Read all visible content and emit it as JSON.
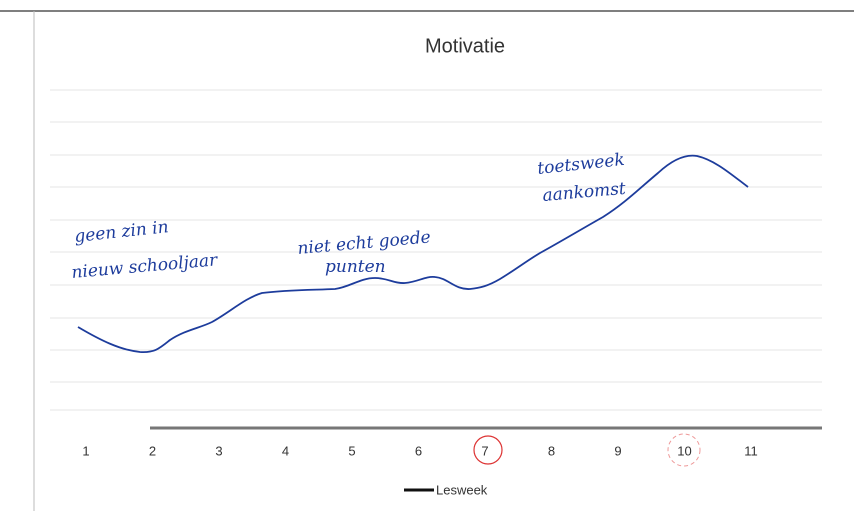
{
  "title": "Motivatie",
  "x_labels": [
    "1",
    "2",
    "3",
    "4",
    "5",
    "6",
    "7",
    "8",
    "9",
    "10",
    "11"
  ],
  "legend": "Lesweek",
  "annotations": [
    "geen zin in",
    "nieuw schooljaar",
    "niet echt goede",
    "punten",
    "toetsweek",
    "aankomst"
  ]
}
